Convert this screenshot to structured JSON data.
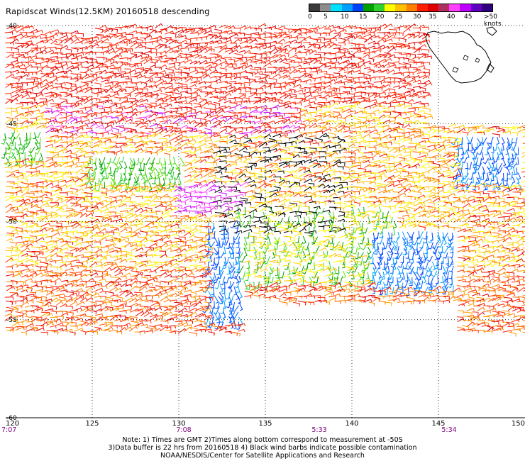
{
  "title": "Rapidscat Winds(12.5KM) 20160518 descending",
  "legend": {
    "labels": [
      "0",
      "5",
      "10",
      "15",
      "20",
      "25",
      "30",
      "35",
      "40",
      "45",
      ">50 knots"
    ],
    "colors": [
      "#3a3a3a",
      "#8c8c8c",
      "#00e0ff",
      "#00a0ff",
      "#0040ff",
      "#00a000",
      "#30d030",
      "#ffff00",
      "#ffc000",
      "#ff8000",
      "#ff2000",
      "#e00000",
      "#b03060",
      "#ff40ff",
      "#c000ff",
      "#6000c0",
      "#300080"
    ]
  },
  "axes": {
    "lon_ticks": [
      "120",
      "125",
      "130",
      "135",
      "140",
      "145",
      "150"
    ],
    "lat_ticks": [
      "-40",
      "-45",
      "-50",
      "-55",
      "-60"
    ],
    "times": [
      "7:07",
      "7:08",
      "5:33",
      "5:34"
    ]
  },
  "notes": [
    "Note: 1) Times are GMT 2)Times along bottom correspond to measurement at -50S",
    "3)Data buffer is 22 hrs from 20160518 4) Black wind barbs indicate possible contamination",
    "NOAA/NESDIS/Center for Satellite Applications and Research"
  ]
}
